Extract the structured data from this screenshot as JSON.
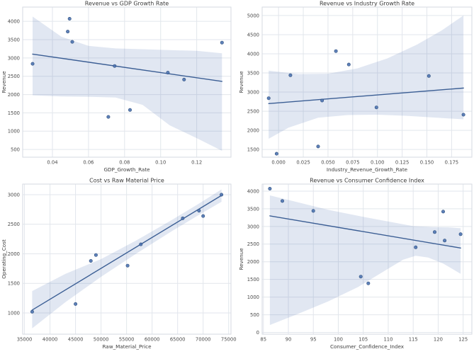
{
  "figure": {
    "background": "#ffffff",
    "colors": {
      "point_fill": "#4c72b0",
      "point_edge": "#30517e",
      "line": "#3b5e94",
      "band_fill": "#4c72b0",
      "band_opacity": 0.17,
      "grid": "#e2e6ec",
      "spine": "#d5dae2",
      "title_text": "#3a3a3a",
      "tick_text": "#4c4c4c",
      "label_text": "#3f3f3f"
    }
  },
  "chart_data": [
    {
      "type": "scatter",
      "title": "Revenue vs GDP Growth Rate",
      "xlabel": "GDP_Growth_Rate",
      "ylabel": "Revenue",
      "xlim": [
        0.0235,
        0.139
      ],
      "ylim": [
        290,
        4390
      ],
      "xticks": {
        "values": [
          0.04,
          0.06,
          0.08,
          0.1,
          0.12
        ],
        "labels": [
          "0.04",
          "0.06",
          "0.08",
          "0.10",
          "0.12"
        ]
      },
      "yticks": {
        "values": [
          500,
          1000,
          1500,
          2000,
          2500,
          3000,
          3500,
          4000
        ],
        "labels": [
          "500",
          "1000",
          "1500",
          "2000",
          "2500",
          "3000",
          "3500",
          "4000"
        ]
      },
      "points": [
        [
          0.029,
          2840
        ],
        [
          0.0485,
          3720
        ],
        [
          0.0495,
          4070
        ],
        [
          0.051,
          3440
        ],
        [
          0.071,
          1390
        ],
        [
          0.0745,
          2780
        ],
        [
          0.083,
          1580
        ],
        [
          0.104,
          2600
        ],
        [
          0.113,
          2410
        ],
        [
          0.134,
          3420
        ]
      ],
      "regression_line": [
        [
          0.029,
          3105
        ],
        [
          0.134,
          2360
        ]
      ],
      "ci_band": {
        "upper": [
          [
            0.029,
            4130
          ],
          [
            0.045,
            3580
          ],
          [
            0.06,
            3330
          ],
          [
            0.075,
            3260
          ],
          [
            0.09,
            3240
          ],
          [
            0.105,
            3215
          ],
          [
            0.12,
            3195
          ],
          [
            0.134,
            3130
          ]
        ],
        "lower": [
          [
            0.029,
            1980
          ],
          [
            0.045,
            1950
          ],
          [
            0.06,
            1940
          ],
          [
            0.075,
            1920
          ],
          [
            0.09,
            1720
          ],
          [
            0.105,
            1160
          ],
          [
            0.12,
            810
          ],
          [
            0.134,
            465
          ]
        ]
      }
    },
    {
      "type": "scatter",
      "title": "Revenue vs Industry Growth Rate",
      "xlabel": "Industry_Revenue_Growth_Rate",
      "ylabel": "Revenue",
      "xlim": [
        -0.0166,
        0.1955
      ],
      "ylim": [
        1300,
        5220
      ],
      "xticks": {
        "values": [
          0.0,
          0.025,
          0.05,
          0.075,
          0.1,
          0.125,
          0.15,
          0.175
        ],
        "labels": [
          "0.000",
          "0.025",
          "0.050",
          "0.075",
          "0.100",
          "0.125",
          "0.150",
          "0.175"
        ]
      },
      "yticks": {
        "values": [
          1500,
          2000,
          2500,
          3000,
          3500,
          4000,
          4500,
          5000
        ],
        "labels": [
          "1500",
          "2000",
          "2500",
          "3000",
          "3500",
          "4000",
          "4500",
          "5000"
        ]
      },
      "points": [
        [
          -0.01,
          2840
        ],
        [
          -0.002,
          1390
        ],
        [
          0.012,
          3440
        ],
        [
          0.04,
          1580
        ],
        [
          0.044,
          2780
        ],
        [
          0.058,
          4070
        ],
        [
          0.071,
          3720
        ],
        [
          0.099,
          2600
        ],
        [
          0.152,
          3420
        ],
        [
          0.187,
          2410
        ]
      ],
      "regression_line": [
        [
          -0.01,
          2700
        ],
        [
          0.187,
          3105
        ]
      ],
      "ci_band": {
        "upper": [
          [
            -0.01,
            3560
          ],
          [
            0.02,
            3470
          ],
          [
            0.05,
            3480
          ],
          [
            0.08,
            3620
          ],
          [
            0.11,
            3880
          ],
          [
            0.14,
            4240
          ],
          [
            0.165,
            4610
          ],
          [
            0.187,
            5000
          ]
        ],
        "lower": [
          [
            -0.01,
            1780
          ],
          [
            0.01,
            2070
          ],
          [
            0.04,
            2330
          ],
          [
            0.07,
            2400
          ],
          [
            0.1,
            2410
          ],
          [
            0.13,
            2380
          ],
          [
            0.16,
            2330
          ],
          [
            0.187,
            2290
          ]
        ]
      }
    },
    {
      "type": "scatter",
      "title": "Cost vs Raw Material Price",
      "xlabel": "Raw_Material_Price",
      "ylabel": "Operating_Cost",
      "xlim": [
        34645,
        75455
      ],
      "ylim": [
        640,
        3180
      ],
      "xticks": {
        "values": [
          35000,
          40000,
          45000,
          50000,
          55000,
          60000,
          65000,
          70000,
          75000
        ],
        "labels": [
          "35000",
          "40000",
          "45000",
          "50000",
          "55000",
          "60000",
          "65000",
          "70000",
          "75000"
        ]
      },
      "yticks": {
        "values": [
          1000,
          1500,
          2000,
          2500,
          3000
        ],
        "labels": [
          "1000",
          "1500",
          "2000",
          "2500",
          "3000"
        ]
      },
      "points": [
        [
          36500,
          1020
        ],
        [
          45000,
          1150
        ],
        [
          48000,
          1880
        ],
        [
          49000,
          1980
        ],
        [
          55200,
          1800
        ],
        [
          57800,
          2160
        ],
        [
          66000,
          2600
        ],
        [
          69200,
          2730
        ],
        [
          70000,
          2640
        ],
        [
          73600,
          3000
        ]
      ],
      "regression_line": [
        [
          36500,
          1048
        ],
        [
          73600,
          2988
        ]
      ],
      "ci_band": {
        "upper": [
          [
            36500,
            1370
          ],
          [
            43000,
            1660
          ],
          [
            50000,
            1910
          ],
          [
            57000,
            2230
          ],
          [
            64000,
            2580
          ],
          [
            69000,
            2840
          ],
          [
            73600,
            3090
          ]
        ],
        "lower": [
          [
            36500,
            740
          ],
          [
            43000,
            1180
          ],
          [
            50000,
            1610
          ],
          [
            57000,
            2010
          ],
          [
            64000,
            2390
          ],
          [
            69000,
            2650
          ],
          [
            73600,
            2880
          ]
        ]
      }
    },
    {
      "type": "scatter",
      "title": "Revenue vs Consumer Confidence Index",
      "xlabel": "Consumer_Confidence_Index",
      "ylabel": "Revenue",
      "xlim": [
        84.75,
        126.75
      ],
      "ylim": [
        -50,
        4200
      ],
      "xticks": {
        "values": [
          85,
          90,
          95,
          100,
          105,
          110,
          115,
          120,
          125
        ],
        "labels": [
          "85",
          "90",
          "95",
          "100",
          "105",
          "110",
          "115",
          "120",
          "125"
        ]
      },
      "yticks": {
        "values": [
          0,
          500,
          1000,
          1500,
          2000,
          2500,
          3000,
          3500,
          4000
        ],
        "labels": [
          "0",
          "500",
          "1000",
          "1500",
          "2000",
          "2500",
          "3000",
          "3500",
          "4000"
        ]
      },
      "points": [
        [
          86.3,
          4070
        ],
        [
          88.8,
          3720
        ],
        [
          95.0,
          3440
        ],
        [
          104.5,
          1580
        ],
        [
          106.0,
          1390
        ],
        [
          115.5,
          2410
        ],
        [
          119.3,
          2840
        ],
        [
          121.0,
          3420
        ],
        [
          121.3,
          2600
        ],
        [
          124.5,
          2780
        ]
      ],
      "regression_line": [
        [
          86.3,
          3300
        ],
        [
          124.5,
          2390
        ]
      ],
      "ci_band": {
        "upper": [
          [
            86.3,
            3880
          ],
          [
            92,
            3680
          ],
          [
            98,
            3470
          ],
          [
            104,
            3300
          ],
          [
            110,
            3140
          ],
          [
            115,
            3010
          ],
          [
            119,
            2980
          ],
          [
            122,
            2975
          ],
          [
            124.5,
            2950
          ]
        ],
        "lower": [
          [
            86.3,
            210
          ],
          [
            92,
            530
          ],
          [
            98,
            880
          ],
          [
            104,
            1290
          ],
          [
            109,
            1720
          ],
          [
            113,
            2060
          ],
          [
            115.5,
            2170
          ],
          [
            118,
            2120
          ],
          [
            121,
            1950
          ],
          [
            124.5,
            1660
          ]
        ]
      }
    }
  ]
}
